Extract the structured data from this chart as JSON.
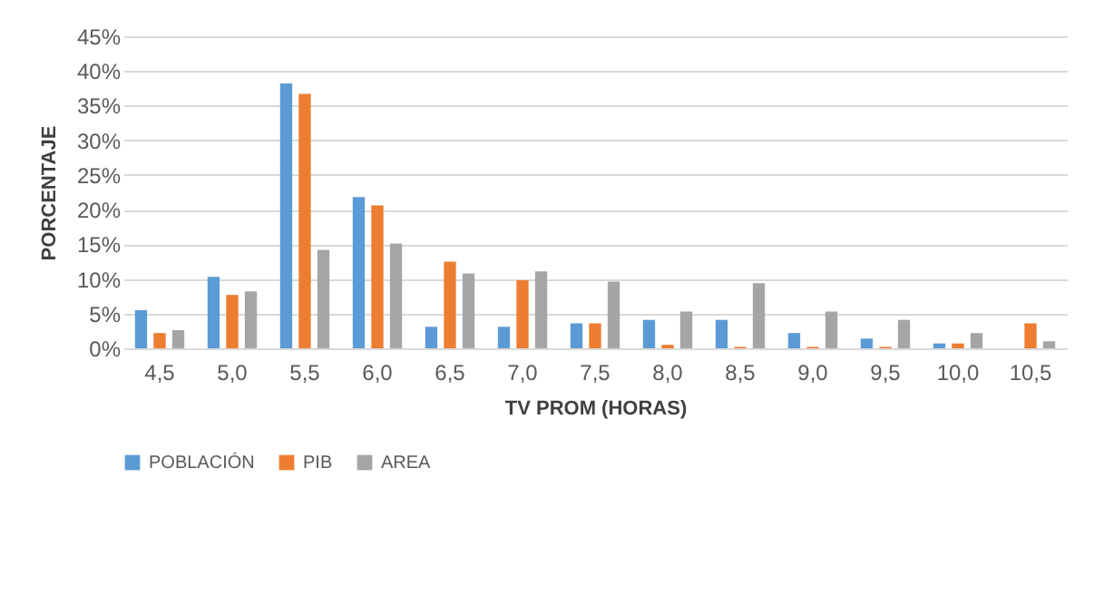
{
  "chart_data": {
    "type": "bar",
    "xlabel": "TV PROM  (HORAS)",
    "ylabel": "PORCENTAJE",
    "categories": [
      "4,5",
      "5,0",
      "5,5",
      "6,0",
      "6,5",
      "7,0",
      "7,5",
      "8,0",
      "8,5",
      "9,0",
      "9,5",
      "10,0",
      "10,5"
    ],
    "series": [
      {
        "name": "POBLACIÓN",
        "color": "#5b9bd5",
        "values": [
          5.5,
          10.3,
          38.2,
          21.8,
          3.1,
          3.1,
          3.6,
          4.1,
          4.1,
          2.2,
          1.4,
          0.7,
          0
        ]
      },
      {
        "name": "PIB",
        "color": "#ed7d31",
        "values": [
          2.2,
          7.7,
          36.7,
          20.6,
          12.5,
          9.8,
          3.6,
          0.5,
          0.2,
          0.2,
          0.2,
          0.7,
          3.6
        ]
      },
      {
        "name": "AREA",
        "color": "#a5a5a5",
        "values": [
          2.6,
          8.2,
          14.2,
          15.1,
          10.8,
          11.1,
          9.6,
          5.3,
          9.4,
          5.3,
          4.1,
          2.2,
          1.0
        ]
      }
    ],
    "ylim": [
      0,
      45
    ],
    "yticks": [
      {
        "value": 0,
        "label": "0%"
      },
      {
        "value": 5,
        "label": "5%"
      },
      {
        "value": 10,
        "label": "10%"
      },
      {
        "value": 15,
        "label": "15%"
      },
      {
        "value": 20,
        "label": "20%"
      },
      {
        "value": 25,
        "label": "25%"
      },
      {
        "value": 30,
        "label": "30%"
      },
      {
        "value": 35,
        "label": "35%"
      },
      {
        "value": 40,
        "label": "40%"
      },
      {
        "value": 45,
        "label": "45%"
      }
    ],
    "grid": "y",
    "legend": "bottom"
  }
}
